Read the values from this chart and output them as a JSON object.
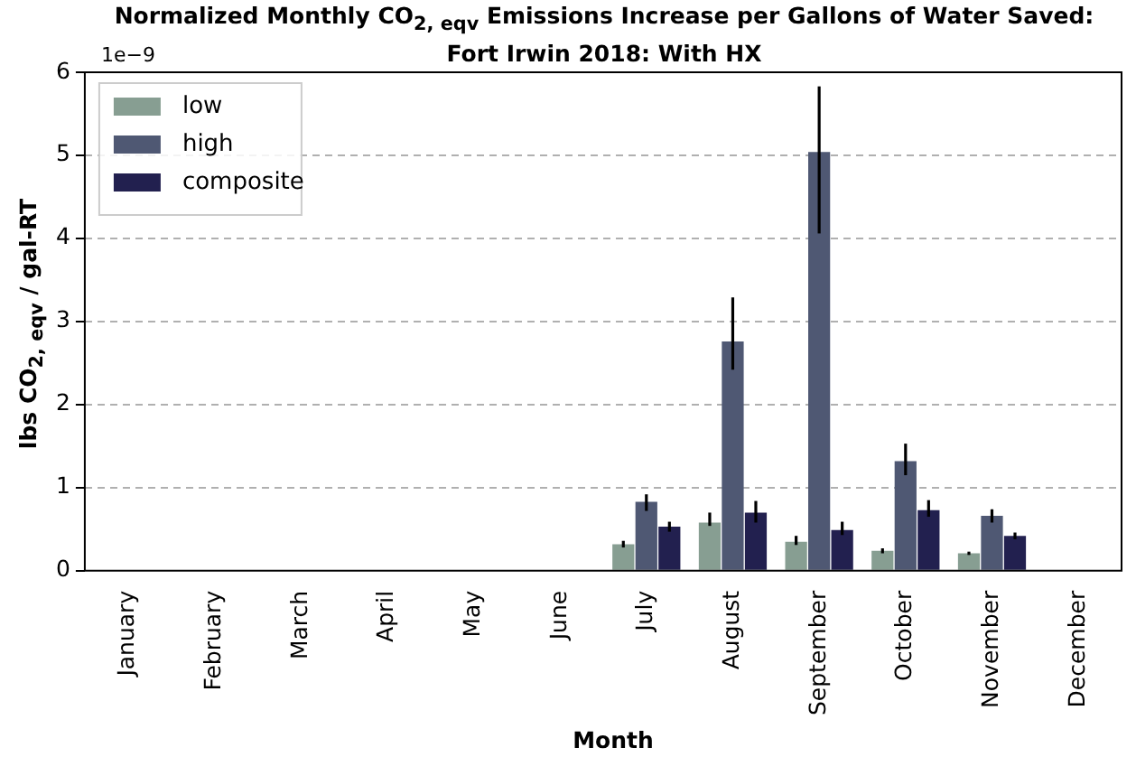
{
  "chart_data": {
    "type": "bar",
    "title": "Normalized Monthly CO$_{2, eqv}$ Emissions Increase per Gallons of Water Saved:\nFort Irwin 2018: With HX",
    "xlabel": "Month",
    "ylabel": "lbs CO$_{2, eqv}$ / gal-RT",
    "annotations": [
      "1e−9"
    ],
    "categories": [
      "January",
      "February",
      "March",
      "April",
      "May",
      "June",
      "July",
      "August",
      "September",
      "October",
      "November",
      "December"
    ],
    "series": [
      {
        "name": "low",
        "color": "#879e92",
        "values": [
          0,
          0,
          0,
          0,
          0,
          0,
          0.32,
          0.58,
          0.35,
          0.24,
          0.21,
          0
        ],
        "errors": [
          null,
          null,
          null,
          null,
          null,
          null,
          0.04,
          [
            0.54,
            0.7
          ],
          [
            0.31,
            0.42
          ],
          0.03,
          0.02,
          null
        ]
      },
      {
        "name": "high",
        "color": "#4f5873",
        "values": [
          0,
          0,
          0,
          0,
          0,
          0,
          0.83,
          2.76,
          5.04,
          1.32,
          0.66,
          0
        ],
        "errors": [
          null,
          null,
          null,
          null,
          null,
          null,
          [
            0.72,
            0.92
          ],
          [
            2.42,
            3.29
          ],
          [
            4.06,
            5.83
          ],
          [
            1.15,
            1.53
          ],
          [
            0.58,
            0.74
          ],
          null
        ]
      },
      {
        "name": "composite",
        "color": "#22204f",
        "values": [
          0,
          0,
          0,
          0,
          0,
          0,
          0.53,
          0.7,
          0.49,
          0.73,
          0.42,
          0
        ],
        "errors": [
          null,
          null,
          null,
          null,
          null,
          null,
          0.06,
          [
            0.58,
            0.84
          ],
          [
            0.43,
            0.59
          ],
          [
            0.65,
            0.85
          ],
          0.04,
          null
        ]
      }
    ],
    "ylim": [
      0,
      6
    ],
    "yticks": [
      0,
      1,
      2,
      3,
      4,
      5,
      6
    ],
    "grid": "y",
    "legend": "top left"
  }
}
